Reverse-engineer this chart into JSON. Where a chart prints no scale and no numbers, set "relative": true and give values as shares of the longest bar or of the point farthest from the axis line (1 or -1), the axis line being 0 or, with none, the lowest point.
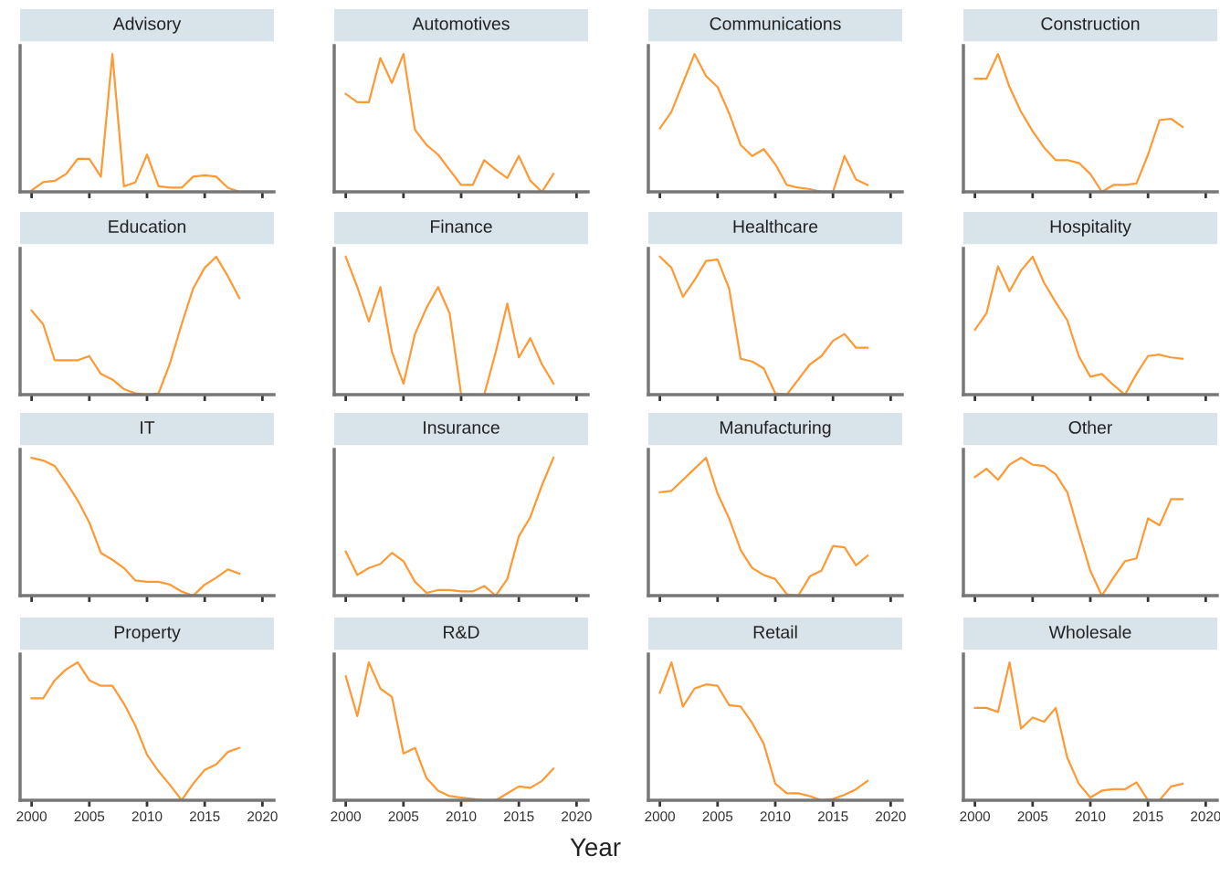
{
  "chart_data": [
    {
      "type": "line",
      "title": "Advisory",
      "relative": true,
      "x": [
        2000,
        2001,
        2002,
        2003,
        2004,
        2005,
        2006,
        2007,
        2008,
        2009,
        2010,
        2011,
        2012,
        2013,
        2014,
        2015,
        2016,
        2017,
        2018
      ],
      "series": [
        {
          "color": "#ff9933",
          "values": [
            0.01,
            0.07,
            0.08,
            0.13,
            0.24,
            0.24,
            0.11,
            1.0,
            0.04,
            0.07,
            0.27,
            0.04,
            0.03,
            0.03,
            0.11,
            0.12,
            0.11,
            0.03,
            0.0
          ]
        }
      ],
      "xlim": [
        1999,
        2021
      ],
      "xticks": [
        2000,
        2005,
        2010,
        2015,
        2020
      ],
      "tick_labels": false
    },
    {
      "type": "line",
      "title": "Automotives",
      "relative": true,
      "x": [
        2000,
        2001,
        2002,
        2003,
        2004,
        2005,
        2006,
        2007,
        2008,
        2009,
        2010,
        2011,
        2012,
        2013,
        2014,
        2015,
        2016,
        2017,
        2018
      ],
      "series": [
        {
          "color": "#ff9933",
          "values": [
            0.71,
            0.65,
            0.65,
            0.97,
            0.79,
            1.0,
            0.45,
            0.34,
            0.27,
            0.16,
            0.05,
            0.05,
            0.23,
            0.16,
            0.1,
            0.26,
            0.08,
            0.0,
            0.13
          ]
        }
      ],
      "xlim": [
        1999,
        2021
      ],
      "xticks": [
        2000,
        2005,
        2010,
        2015,
        2020
      ],
      "tick_labels": false
    },
    {
      "type": "line",
      "title": "Communications",
      "relative": true,
      "x": [
        2000,
        2001,
        2002,
        2003,
        2004,
        2005,
        2006,
        2007,
        2008,
        2009,
        2010,
        2011,
        2012,
        2013,
        2014,
        2015,
        2016,
        2017,
        2018
      ],
      "series": [
        {
          "color": "#ff9933",
          "values": [
            0.46,
            0.58,
            0.79,
            1.0,
            0.84,
            0.76,
            0.57,
            0.34,
            0.26,
            0.31,
            0.2,
            0.05,
            0.03,
            0.02,
            0.0,
            0.0,
            0.26,
            0.09,
            0.05
          ]
        }
      ],
      "xlim": [
        1999,
        2021
      ],
      "xticks": [
        2000,
        2005,
        2010,
        2015,
        2020
      ],
      "tick_labels": false
    },
    {
      "type": "line",
      "title": "Construction",
      "relative": true,
      "x": [
        2000,
        2001,
        2002,
        2003,
        2004,
        2005,
        2006,
        2007,
        2008,
        2009,
        2010,
        2011,
        2012,
        2013,
        2014,
        2015,
        2016,
        2017,
        2018
      ],
      "series": [
        {
          "color": "#ff9933",
          "values": [
            0.82,
            0.82,
            1.0,
            0.76,
            0.58,
            0.44,
            0.32,
            0.23,
            0.23,
            0.21,
            0.13,
            0.0,
            0.05,
            0.05,
            0.06,
            0.27,
            0.52,
            0.53,
            0.47
          ]
        }
      ],
      "xlim": [
        1999,
        2021
      ],
      "xticks": [
        2000,
        2005,
        2010,
        2015,
        2020
      ],
      "tick_labels": false
    },
    {
      "type": "line",
      "title": "Education",
      "relative": true,
      "x": [
        2000,
        2001,
        2002,
        2003,
        2004,
        2005,
        2006,
        2007,
        2008,
        2009,
        2010,
        2011,
        2012,
        2013,
        2014,
        2015,
        2016,
        2017,
        2018
      ],
      "series": [
        {
          "color": "#ff9933",
          "values": [
            0.61,
            0.51,
            0.25,
            0.25,
            0.25,
            0.28,
            0.15,
            0.11,
            0.04,
            0.01,
            0.0,
            0.01,
            0.23,
            0.51,
            0.77,
            0.92,
            1.0,
            0.86,
            0.7
          ]
        }
      ],
      "xlim": [
        1999,
        2021
      ],
      "xticks": [
        2000,
        2005,
        2010,
        2015,
        2020
      ],
      "tick_labels": false
    },
    {
      "type": "line",
      "title": "Finance",
      "relative": true,
      "x": [
        2000,
        2001,
        2002,
        2003,
        2004,
        2005,
        2006,
        2007,
        2008,
        2009,
        2010,
        2011,
        2012,
        2013,
        2014,
        2015,
        2016,
        2017,
        2018
      ],
      "series": [
        {
          "color": "#ff9933",
          "values": [
            1.0,
            0.78,
            0.53,
            0.78,
            0.31,
            0.08,
            0.44,
            0.63,
            0.78,
            0.59,
            0.0,
            0.0,
            0.0,
            0.31,
            0.66,
            0.27,
            0.41,
            0.22,
            0.08
          ]
        }
      ],
      "xlim": [
        1999,
        2021
      ],
      "xticks": [
        2000,
        2005,
        2010,
        2015,
        2020
      ],
      "tick_labels": false
    },
    {
      "type": "line",
      "title": "Healthcare",
      "relative": true,
      "x": [
        2000,
        2001,
        2002,
        2003,
        2004,
        2005,
        2006,
        2007,
        2008,
        2009,
        2010,
        2011,
        2012,
        2013,
        2014,
        2015,
        2016,
        2017,
        2018
      ],
      "series": [
        {
          "color": "#ff9933",
          "values": [
            1.0,
            0.92,
            0.71,
            0.83,
            0.97,
            0.98,
            0.77,
            0.26,
            0.24,
            0.19,
            0.01,
            0.0,
            0.11,
            0.22,
            0.28,
            0.39,
            0.44,
            0.34,
            0.34
          ]
        }
      ],
      "xlim": [
        1999,
        2021
      ],
      "xticks": [
        2000,
        2005,
        2010,
        2015,
        2020
      ],
      "tick_labels": false
    },
    {
      "type": "line",
      "title": "Hospitality",
      "relative": true,
      "x": [
        2000,
        2001,
        2002,
        2003,
        2004,
        2005,
        2006,
        2007,
        2008,
        2009,
        2010,
        2011,
        2012,
        2013,
        2014,
        2015,
        2016,
        2017,
        2018
      ],
      "series": [
        {
          "color": "#ff9933",
          "values": [
            0.47,
            0.59,
            0.93,
            0.75,
            0.9,
            1.0,
            0.81,
            0.67,
            0.54,
            0.28,
            0.13,
            0.15,
            0.07,
            0.0,
            0.15,
            0.28,
            0.29,
            0.27,
            0.26
          ]
        }
      ],
      "xlim": [
        1999,
        2021
      ],
      "xticks": [
        2000,
        2005,
        2010,
        2015,
        2020
      ],
      "tick_labels": false
    },
    {
      "type": "line",
      "title": "IT",
      "relative": true,
      "x": [
        2000,
        2001,
        2002,
        2003,
        2004,
        2005,
        2006,
        2007,
        2008,
        2009,
        2010,
        2011,
        2012,
        2013,
        2014,
        2015,
        2016,
        2017,
        2018
      ],
      "series": [
        {
          "color": "#ff9933",
          "values": [
            1.0,
            0.98,
            0.94,
            0.82,
            0.69,
            0.53,
            0.31,
            0.26,
            0.2,
            0.11,
            0.1,
            0.1,
            0.08,
            0.03,
            0.0,
            0.08,
            0.13,
            0.19,
            0.16
          ]
        }
      ],
      "xlim": [
        1999,
        2021
      ],
      "xticks": [
        2000,
        2005,
        2010,
        2015,
        2020
      ],
      "tick_labels": false
    },
    {
      "type": "line",
      "title": "Insurance",
      "relative": true,
      "x": [
        2000,
        2001,
        2002,
        2003,
        2004,
        2005,
        2006,
        2007,
        2008,
        2009,
        2010,
        2011,
        2012,
        2013,
        2014,
        2015,
        2016,
        2017,
        2018
      ],
      "series": [
        {
          "color": "#ff9933",
          "values": [
            0.32,
            0.15,
            0.2,
            0.23,
            0.31,
            0.25,
            0.1,
            0.02,
            0.04,
            0.04,
            0.03,
            0.03,
            0.07,
            0.0,
            0.12,
            0.43,
            0.57,
            0.8,
            1.0
          ]
        }
      ],
      "xlim": [
        1999,
        2021
      ],
      "xticks": [
        2000,
        2005,
        2010,
        2015,
        2020
      ],
      "tick_labels": false
    },
    {
      "type": "line",
      "title": "Manufacturing",
      "relative": true,
      "x": [
        2000,
        2001,
        2002,
        2003,
        2004,
        2005,
        2006,
        2007,
        2008,
        2009,
        2010,
        2011,
        2012,
        2013,
        2014,
        2015,
        2016,
        2017,
        2018
      ],
      "series": [
        {
          "color": "#ff9933",
          "values": [
            0.75,
            0.76,
            0.84,
            0.92,
            1.0,
            0.74,
            0.56,
            0.33,
            0.2,
            0.15,
            0.12,
            0.01,
            0.0,
            0.14,
            0.18,
            0.36,
            0.35,
            0.22,
            0.29
          ]
        }
      ],
      "xlim": [
        1999,
        2021
      ],
      "xticks": [
        2000,
        2005,
        2010,
        2015,
        2020
      ],
      "tick_labels": false
    },
    {
      "type": "line",
      "title": "Other",
      "relative": true,
      "x": [
        2000,
        2001,
        2002,
        2003,
        2004,
        2005,
        2006,
        2007,
        2008,
        2009,
        2010,
        2011,
        2012,
        2013,
        2014,
        2015,
        2016,
        2017,
        2018
      ],
      "series": [
        {
          "color": "#ff9933",
          "values": [
            0.86,
            0.92,
            0.84,
            0.95,
            1.0,
            0.95,
            0.94,
            0.88,
            0.75,
            0.46,
            0.18,
            0.0,
            0.13,
            0.25,
            0.27,
            0.56,
            0.51,
            0.7,
            0.7
          ]
        }
      ],
      "xlim": [
        1999,
        2021
      ],
      "xticks": [
        2000,
        2005,
        2010,
        2015,
        2020
      ],
      "tick_labels": false
    },
    {
      "type": "line",
      "title": "Property",
      "relative": true,
      "x": [
        2000,
        2001,
        2002,
        2003,
        2004,
        2005,
        2006,
        2007,
        2008,
        2009,
        2010,
        2011,
        2012,
        2013,
        2014,
        2015,
        2016,
        2017,
        2018
      ],
      "series": [
        {
          "color": "#ff9933",
          "values": [
            0.74,
            0.74,
            0.87,
            0.95,
            1.0,
            0.87,
            0.83,
            0.83,
            0.7,
            0.54,
            0.33,
            0.21,
            0.11,
            0.0,
            0.12,
            0.22,
            0.26,
            0.35,
            0.38
          ]
        }
      ],
      "xlim": [
        1999,
        2021
      ],
      "xticks": [
        2000,
        2005,
        2010,
        2015,
        2020
      ],
      "tick_labels": "x"
    },
    {
      "type": "line",
      "title": "R&D",
      "xlabel": "Year",
      "relative": true,
      "x": [
        2000,
        2001,
        2002,
        2003,
        2004,
        2005,
        2006,
        2007,
        2008,
        2009,
        2010,
        2011,
        2012,
        2013,
        2014,
        2015,
        2016,
        2017,
        2018
      ],
      "series": [
        {
          "color": "#ff9933",
          "values": [
            0.9,
            0.61,
            1.0,
            0.81,
            0.75,
            0.34,
            0.38,
            0.16,
            0.07,
            0.03,
            0.02,
            0.01,
            0.0,
            0.0,
            0.05,
            0.1,
            0.09,
            0.14,
            0.23
          ]
        }
      ],
      "xlim": [
        1999,
        2021
      ],
      "xticks": [
        2000,
        2005,
        2010,
        2015,
        2020
      ],
      "tick_labels": "x"
    },
    {
      "type": "line",
      "title": "Retail",
      "relative": true,
      "x": [
        2000,
        2001,
        2002,
        2003,
        2004,
        2005,
        2006,
        2007,
        2008,
        2009,
        2010,
        2011,
        2012,
        2013,
        2014,
        2015,
        2016,
        2017,
        2018
      ],
      "series": [
        {
          "color": "#ff9933",
          "values": [
            0.78,
            1.0,
            0.68,
            0.81,
            0.84,
            0.83,
            0.69,
            0.68,
            0.56,
            0.41,
            0.12,
            0.05,
            0.05,
            0.03,
            0.0,
            0.01,
            0.04,
            0.08,
            0.14
          ]
        }
      ],
      "xlim": [
        1999,
        2021
      ],
      "xticks": [
        2000,
        2005,
        2010,
        2015,
        2020
      ],
      "tick_labels": "x"
    },
    {
      "type": "line",
      "title": "Wholesale",
      "relative": true,
      "x": [
        2000,
        2001,
        2002,
        2003,
        2004,
        2005,
        2006,
        2007,
        2008,
        2009,
        2010,
        2011,
        2012,
        2013,
        2014,
        2015,
        2016,
        2017,
        2018
      ],
      "series": [
        {
          "color": "#ff9933",
          "values": [
            0.67,
            0.67,
            0.64,
            1.0,
            0.52,
            0.6,
            0.57,
            0.67,
            0.31,
            0.12,
            0.02,
            0.07,
            0.08,
            0.08,
            0.13,
            0.0,
            0.0,
            0.1,
            0.12
          ]
        }
      ],
      "xlim": [
        1999,
        2021
      ],
      "xticks": [
        2000,
        2005,
        2010,
        2015,
        2020
      ],
      "tick_labels": "x"
    }
  ]
}
